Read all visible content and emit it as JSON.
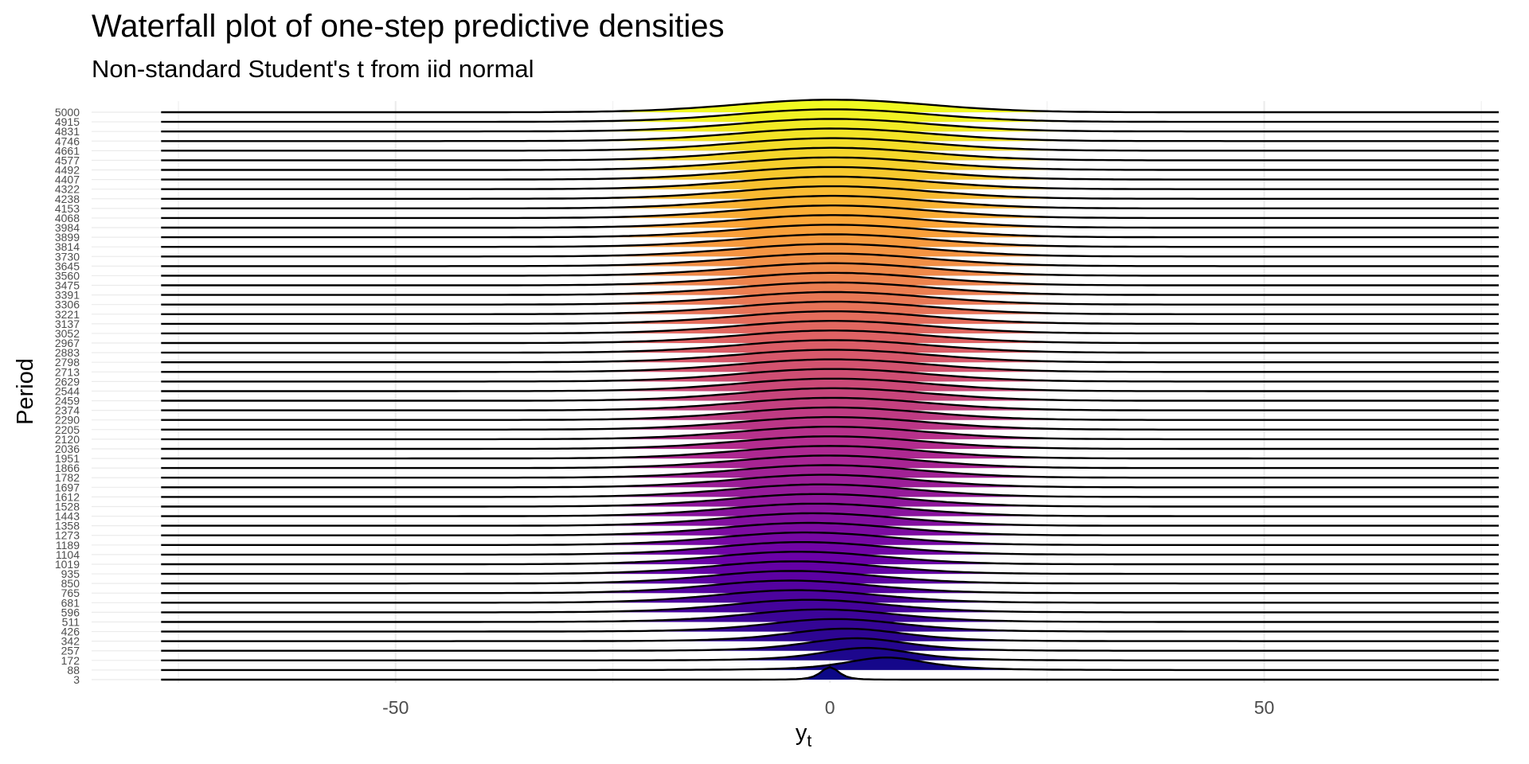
{
  "chart_data": {
    "type": "ridgeline",
    "title": "Waterfall plot of one-step predictive densities",
    "subtitle": "Non-standard Student's t from iid normal",
    "xlabel": "y",
    "xlabel_subscript": "t",
    "ylabel": "Period",
    "xlim": [
      -85,
      77
    ],
    "x_ticks": [
      -50,
      0,
      50
    ],
    "x_minor_ticks": [
      -75,
      -25,
      25,
      75
    ],
    "x_range_of_curves": [
      -77,
      77
    ],
    "grid": true,
    "fill_palette": "plasma",
    "colors": {
      "line": "#000000",
      "grid_major": "#ebebeb",
      "grid_minor": "#f3f3f3",
      "palette_stops": [
        "#0d0887",
        "#6a00a8",
        "#b12a90",
        "#e16462",
        "#fca636",
        "#f0f921"
      ]
    },
    "periods": [
      3,
      88,
      172,
      257,
      342,
      426,
      511,
      596,
      681,
      765,
      850,
      935,
      1019,
      1104,
      1189,
      1273,
      1358,
      1443,
      1528,
      1612,
      1697,
      1782,
      1866,
      1951,
      2036,
      2120,
      2205,
      2290,
      2374,
      2459,
      2544,
      2629,
      2713,
      2798,
      2883,
      2967,
      3052,
      3137,
      3221,
      3306,
      3391,
      3475,
      3560,
      3645,
      3730,
      3814,
      3899,
      3984,
      4068,
      4153,
      4238,
      4322,
      4407,
      4492,
      4577,
      4661,
      4746,
      4831,
      4915,
      5000
    ],
    "density_params": {
      "location": [
        0,
        6.5,
        4.2,
        3.0,
        1.8,
        0.6,
        -1.0,
        -2.5,
        -3.8,
        -4.6,
        -4.3,
        -4.0,
        -3.6,
        -3.2,
        -2.8,
        -2.4,
        -2.0,
        -1.6,
        -1.3,
        -1.0,
        -0.7,
        -0.4,
        -0.2,
        0,
        0.1,
        0.2,
        0.3,
        0.3,
        0.3,
        0.3,
        0.3,
        0.3,
        0.3,
        0.3,
        0.3,
        0.3,
        0.3,
        0.3,
        0.3,
        0.3,
        0.3,
        0.3,
        0.3,
        0.3,
        0.3,
        0.3,
        0.3,
        0.3,
        0.3,
        0.3,
        0.3,
        0.3,
        0.3,
        0.3,
        0.3,
        0.3,
        0.3,
        0.3,
        0.3,
        0.3
      ],
      "scale": [
        1.1,
        5.0,
        5.5,
        6.2,
        7.0,
        8.0,
        8.8,
        9.2,
        9.4,
        9.5,
        9.6,
        9.7,
        9.8,
        9.9,
        10.0,
        10.1,
        10.2,
        10.3,
        10.3,
        10.4,
        10.4,
        10.5,
        10.5,
        10.6,
        10.6,
        10.7,
        10.7,
        10.7,
        10.8,
        10.8,
        10.8,
        10.8,
        10.9,
        10.9,
        10.9,
        10.9,
        10.9,
        11.0,
        11.0,
        11.0,
        11.0,
        11.0,
        11.0,
        11.0,
        11.0,
        11.0,
        11.0,
        11.0,
        11.0,
        11.0,
        11.0,
        11.0,
        11.0,
        11.0,
        11.0,
        11.0,
        11.0,
        11.0,
        11.0,
        11.0
      ],
      "dof": [
        3,
        3,
        4,
        5,
        6,
        8,
        10,
        15,
        20,
        30,
        40,
        50,
        60,
        70,
        80,
        90,
        100,
        110,
        120,
        130,
        140,
        150,
        160,
        170,
        180,
        190,
        200,
        210,
        220,
        230,
        240,
        250,
        260,
        270,
        280,
        290,
        300,
        310,
        320,
        330,
        340,
        350,
        360,
        370,
        380,
        390,
        400,
        410,
        420,
        430,
        440,
        450,
        460,
        470,
        480,
        490,
        500,
        510,
        520,
        530
      ]
    }
  }
}
